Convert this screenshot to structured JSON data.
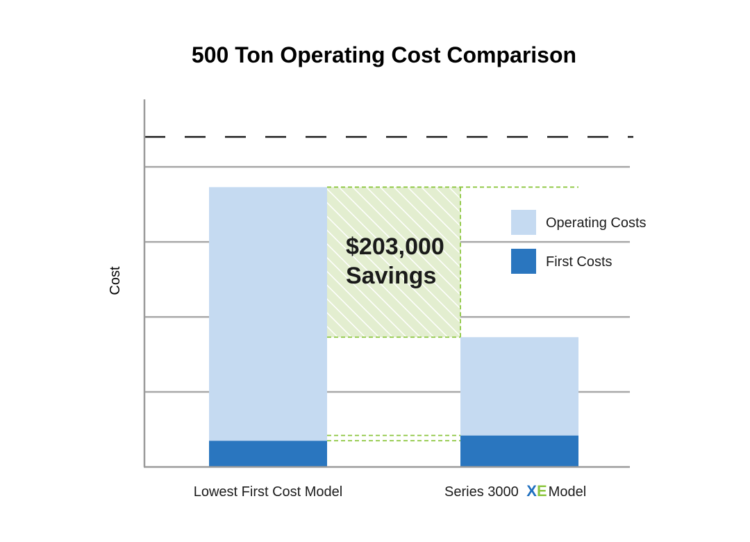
{
  "chart_data": {
    "type": "bar",
    "stacked": true,
    "title": "500 Ton Operating Cost Comparison",
    "ylabel": "Cost",
    "xlabel": "",
    "categories": [
      "Lowest First Cost Model",
      "Series 3000 XE Model"
    ],
    "category_label_parts": [
      {
        "prefix": "Lowest First Cost Model",
        "brand": "",
        "suffix": ""
      },
      {
        "prefix": "Series 3000",
        "brand": "XE",
        "suffix": "Model"
      }
    ],
    "series": [
      {
        "name": "First Costs",
        "values": [
          0.35,
          0.42
        ],
        "color": "#2a76bf"
      },
      {
        "name": "Operating Costs",
        "values": [
          3.38,
          1.31
        ],
        "color": "#c5daf1"
      }
    ],
    "ylim": [
      0,
      4.9
    ],
    "gridlines": [
      1,
      2,
      3,
      4
    ],
    "reference_line": {
      "value": 4.4,
      "style": "dashed",
      "color": "#1a1a1a"
    },
    "y_tick_labels": false,
    "grid": true,
    "legend": {
      "placement": "right",
      "order": [
        "Operating Costs",
        "First Costs"
      ]
    },
    "annotation": {
      "lines": [
        "$203,000",
        "Savings"
      ],
      "fill_color": "#e3eed0",
      "hatch_color": "#ffffff",
      "border_color": "#8cc63f"
    },
    "brand_colors": {
      "X": "#1f6fbf",
      "E": "#8cc63f"
    }
  }
}
